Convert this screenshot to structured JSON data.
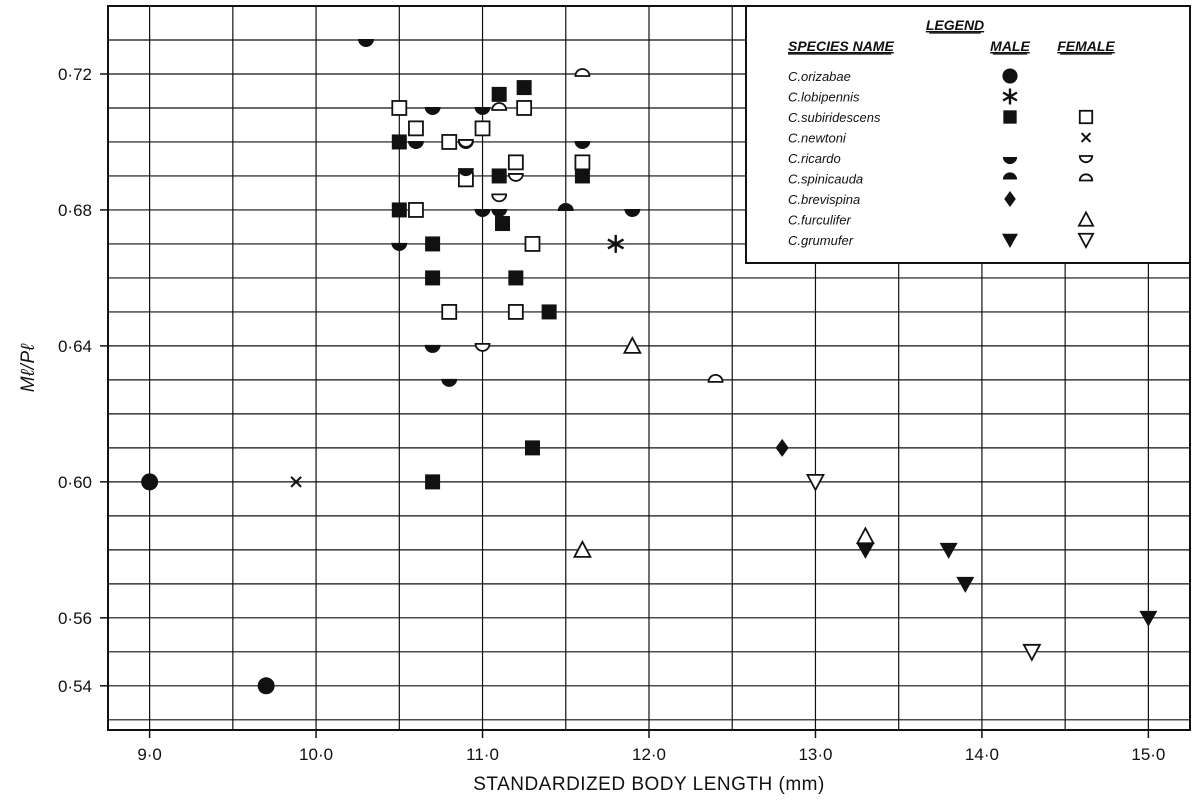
{
  "chart_data": {
    "type": "scatter",
    "xlabel": "STANDARDIZED  BODY  LENGTH  (mm)",
    "ylabel": "Mℓ/Pℓ",
    "xlim": [
      8.75,
      15.25
    ],
    "ylim": [
      0.527,
      0.74
    ],
    "x_ticks": [
      {
        "value": 9.0,
        "label": "9·0"
      },
      {
        "value": 10.0,
        "label": "10·0"
      },
      {
        "value": 11.0,
        "label": "11·0"
      },
      {
        "value": 12.0,
        "label": "12·0"
      },
      {
        "value": 13.0,
        "label": "13·0"
      },
      {
        "value": 14.0,
        "label": "14·0"
      },
      {
        "value": 15.0,
        "label": "15·0"
      }
    ],
    "y_ticks": [
      {
        "value": 0.54,
        "label": "0·54"
      },
      {
        "value": 0.56,
        "label": "0·56"
      },
      {
        "value": 0.6,
        "label": "0·60"
      },
      {
        "value": 0.64,
        "label": "0·64"
      },
      {
        "value": 0.68,
        "label": "0·68"
      },
      {
        "value": 0.72,
        "label": "0·72"
      }
    ],
    "grid": true,
    "legend": {
      "placement": "top-right",
      "title": "LEGEND",
      "col_species": "SPECIES NAME",
      "col_male": "MALE",
      "col_female": "FEMALE",
      "entries": [
        {
          "species": "C.orizabae",
          "male": "circle",
          "female": ""
        },
        {
          "species": "C.lobipennis",
          "male": "asterisk",
          "female": ""
        },
        {
          "species": "C.subiridescens",
          "male": "square-filled",
          "female": "square-open"
        },
        {
          "species": "C.newtoni",
          "male": "",
          "female": "x"
        },
        {
          "species": "C.ricardo",
          "male": "half-down",
          "female": "half-down-open"
        },
        {
          "species": "C.spinicauda",
          "male": "half-up",
          "female": "half-up-open"
        },
        {
          "species": "C.brevispina",
          "male": "diamond",
          "female": ""
        },
        {
          "species": "C.furculifer",
          "male": "",
          "female": "triangle-up-open"
        },
        {
          "species": "C.grumufer",
          "male": "triangle-down-filled",
          "female": "triangle-down-open"
        }
      ]
    },
    "series": [
      {
        "name": "C.orizabae",
        "marker": "circle",
        "points": [
          [
            9.0,
            0.6
          ],
          [
            9.7,
            0.54
          ]
        ]
      },
      {
        "name": "C.lobipennis",
        "marker": "asterisk",
        "points": [
          [
            11.8,
            0.67
          ]
        ]
      },
      {
        "name": "C.newtoni",
        "marker": "x",
        "points": [
          [
            9.88,
            0.6
          ]
        ]
      },
      {
        "name": "C.subiridescens",
        "marker": "square-filled",
        "points": [
          [
            10.5,
            0.7
          ],
          [
            10.5,
            0.68
          ],
          [
            10.7,
            0.67
          ],
          [
            10.7,
            0.66
          ],
          [
            10.7,
            0.6
          ],
          [
            11.1,
            0.714
          ],
          [
            11.25,
            0.716
          ],
          [
            11.1,
            0.69
          ],
          [
            11.12,
            0.676
          ],
          [
            11.6,
            0.69
          ],
          [
            11.2,
            0.66
          ],
          [
            11.4,
            0.65
          ],
          [
            11.3,
            0.61
          ]
        ]
      },
      {
        "name": "C.subiridescens",
        "marker": "square-open",
        "points": [
          [
            10.5,
            0.71
          ],
          [
            10.6,
            0.704
          ],
          [
            10.8,
            0.7
          ],
          [
            10.6,
            0.68
          ],
          [
            11.0,
            0.704
          ],
          [
            10.9,
            0.689
          ],
          [
            11.25,
            0.71
          ],
          [
            11.2,
            0.694
          ],
          [
            11.6,
            0.694
          ],
          [
            11.3,
            0.67
          ],
          [
            10.8,
            0.65
          ],
          [
            11.2,
            0.65
          ]
        ]
      },
      {
        "name": "C.ricardo",
        "marker": "half-down",
        "points": [
          [
            10.3,
            0.73
          ],
          [
            10.7,
            0.71
          ],
          [
            11.0,
            0.71
          ],
          [
            10.6,
            0.7
          ],
          [
            10.9,
            0.7
          ],
          [
            10.9,
            0.692
          ],
          [
            11.0,
            0.68
          ],
          [
            11.1,
            0.68
          ],
          [
            11.6,
            0.7
          ],
          [
            11.9,
            0.68
          ],
          [
            10.5,
            0.67
          ],
          [
            10.7,
            0.64
          ],
          [
            10.8,
            0.63
          ]
        ]
      },
      {
        "name": "C.ricardo",
        "marker": "half-down-open",
        "points": [
          [
            10.9,
            0.7
          ],
          [
            11.2,
            0.69
          ],
          [
            11.1,
            0.684
          ],
          [
            11.0,
            0.64
          ]
        ]
      },
      {
        "name": "C.spinicauda",
        "marker": "half-up",
        "points": [
          [
            11.5,
            0.68
          ]
        ]
      },
      {
        "name": "C.spinicauda",
        "marker": "half-up-open",
        "points": [
          [
            11.6,
            0.72
          ],
          [
            11.1,
            0.71
          ],
          [
            12.4,
            0.63
          ]
        ]
      },
      {
        "name": "C.brevispina",
        "marker": "diamond",
        "points": [
          [
            12.8,
            0.61
          ]
        ]
      },
      {
        "name": "C.furculifer",
        "marker": "triangle-up-open",
        "points": [
          [
            11.9,
            0.64
          ],
          [
            11.6,
            0.58
          ],
          [
            13.3,
            0.584
          ]
        ]
      },
      {
        "name": "C.grumufer",
        "marker": "triangle-down-filled",
        "points": [
          [
            13.3,
            0.58
          ],
          [
            13.8,
            0.58
          ],
          [
            13.9,
            0.57
          ],
          [
            15.0,
            0.56
          ]
        ]
      },
      {
        "name": "C.grumufer",
        "marker": "triangle-down-open",
        "points": [
          [
            13.0,
            0.6
          ],
          [
            14.3,
            0.55
          ]
        ]
      }
    ]
  }
}
